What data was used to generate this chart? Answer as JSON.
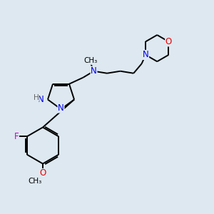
{
  "background_color": "#dde8f0",
  "bond_color": "#000000",
  "atom_colors": {
    "N": "#0000ee",
    "O": "#ee0000",
    "F": "#cc00cc",
    "H": "#666666",
    "C": "#000000"
  },
  "font_size": 8.5,
  "lw": 1.4
}
